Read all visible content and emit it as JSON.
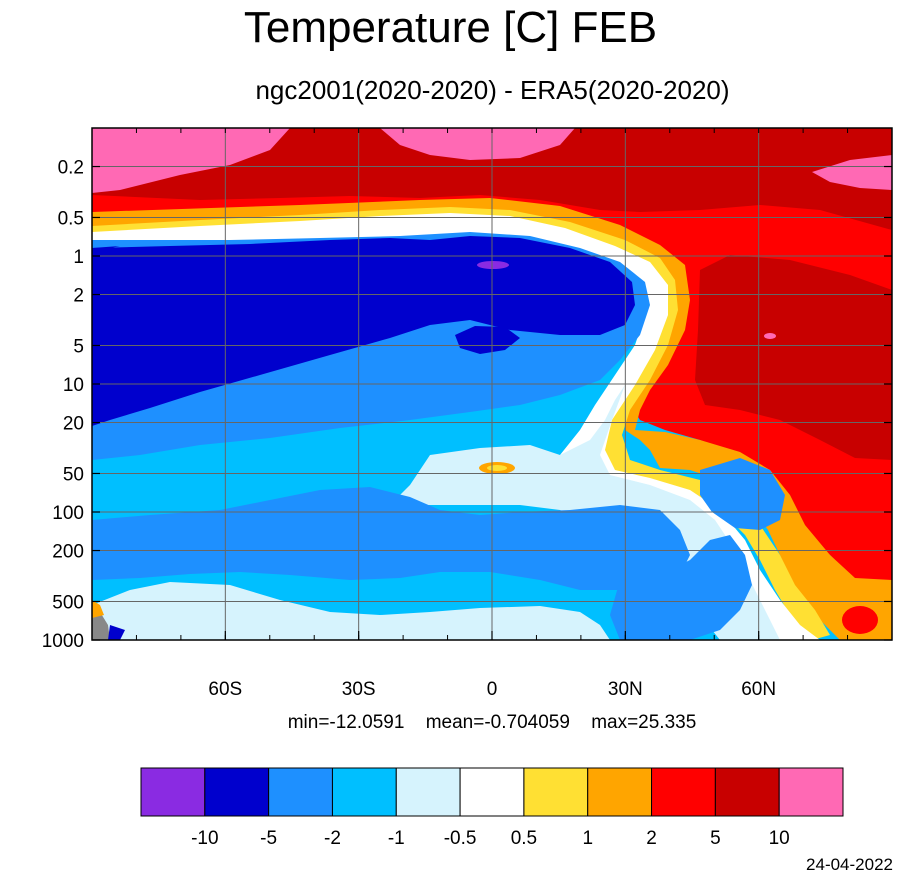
{
  "title": "Temperature [C] FEB",
  "subtitle": "ngc2001(2020-2020) - ERA5(2020-2020)",
  "stats": {
    "min": "min=-12.0591",
    "mean": "mean=-0.704059",
    "max": "max=25.335"
  },
  "date": "24-04-2022",
  "chart_data": {
    "type": "heatmap",
    "title": "Temperature [C] FEB",
    "subtitle": "ngc2001(2020-2020) - ERA5(2020-2020)",
    "x": {
      "label": "",
      "range": [
        -90,
        90
      ],
      "ticks": [
        -60,
        -30,
        0,
        30,
        60
      ],
      "tick_labels": [
        "60S",
        "30S",
        "0",
        "30N",
        "60N"
      ]
    },
    "y": {
      "label": "",
      "scale": "log",
      "inverted": true,
      "range": [
        1000,
        0.1
      ],
      "ticks": [
        0.2,
        0.5,
        1,
        2,
        5,
        10,
        20,
        50,
        100,
        200,
        500,
        1000
      ],
      "tick_labels": [
        "0.2",
        "0.5",
        "1",
        "2",
        "5",
        "10",
        "20",
        "50",
        "100",
        "200",
        "500",
        "1000"
      ]
    },
    "colorbar": {
      "levels": [
        -10,
        -5,
        -2,
        -1,
        -0.5,
        0.5,
        1,
        2,
        5,
        10
      ],
      "level_labels": [
        "-10",
        "-5",
        "-2",
        "-1",
        "-0.5",
        "0.5",
        "1",
        "2",
        "5",
        "10"
      ],
      "colors": [
        "#8a2be2",
        "#0000cd",
        "#1e90ff",
        "#00bfff",
        "#d6f3fd",
        "#ffffff",
        "#ffe033",
        "#ffa500",
        "#ff0000",
        "#c80000",
        "#ff69b4"
      ]
    },
    "min": -12.0591,
    "mean": -0.704059,
    "max": 25.335,
    "grid": true
  }
}
